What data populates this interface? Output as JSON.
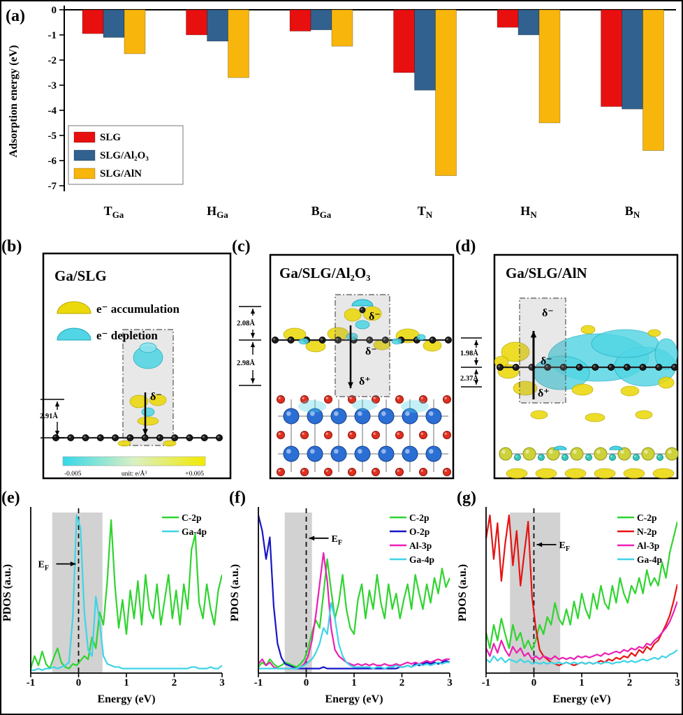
{
  "figure": {
    "panel_labels": {
      "a": "(a)",
      "b": "(b)",
      "c": "(c)",
      "d": "(d)",
      "e": "(e)",
      "f": "(f)",
      "g": "(g)"
    }
  },
  "panel_b": {
    "title": "Ga/SLG",
    "legend": [
      {
        "name": "accumulation-blob",
        "label": "e⁻ accumulation",
        "color": "#ecd90b"
      },
      {
        "name": "depletion-blob",
        "label": "e⁻ depletion",
        "color": "#52d5e4"
      }
    ],
    "distance": "2.91Å",
    "delta_minus": "δ⁻",
    "colorbar": {
      "min": "-0.005",
      "max": "+0.005",
      "unit": "unit: e/Å³"
    }
  },
  "panel_c": {
    "title": "Ga/SLG/Al₂O₃",
    "distance_top": "2.08Å",
    "distance_bottom": "2.98Å",
    "delta_minus": "δ⁻",
    "delta_plus": "δ⁺"
  },
  "panel_d": {
    "title": "Ga/SLG/AlN",
    "distance_top": "1.98Å",
    "distance_bottom": "2.37Å",
    "delta_minus": "δ⁻",
    "delta_plus": "δ⁺"
  },
  "chart_data": [
    {
      "id": "adsorption-energy-bars",
      "type": "bar",
      "title": "",
      "xlabel": "",
      "ylabel": "Adsorption energy (eV)",
      "ylim": [
        -7,
        0
      ],
      "yticks": [
        0,
        -1,
        -2,
        -3,
        -4,
        -5,
        -6,
        -7
      ],
      "categories": [
        {
          "main": "T",
          "sub": "Ga"
        },
        {
          "main": "H",
          "sub": "Ga"
        },
        {
          "main": "B",
          "sub": "Ga"
        },
        {
          "main": "T",
          "sub": "N"
        },
        {
          "main": "H",
          "sub": "N"
        },
        {
          "main": "B",
          "sub": "N"
        }
      ],
      "series": [
        {
          "name": "SLG",
          "color": "#e8100f",
          "values": [
            -0.95,
            -1.0,
            -0.85,
            -2.5,
            -0.7,
            -3.85
          ]
        },
        {
          "name": "SLG/Al₂O₃",
          "color": "#31618f",
          "values": [
            -1.1,
            -1.25,
            -0.8,
            -3.2,
            -1.0,
            -3.95
          ]
        },
        {
          "name": "SLG/AlN",
          "color": "#f8b50c",
          "values": [
            -1.75,
            -2.7,
            -1.45,
            -6.6,
            -4.5,
            -5.6
          ]
        }
      ],
      "legend_position": "middle-left",
      "grid": false
    },
    {
      "id": "pdos-ga-slg",
      "type": "line",
      "xlabel": "Energy (eV)",
      "ylabel": "PDOS (a.u.)",
      "xlim": [
        -1,
        3
      ],
      "xticks": [
        -1,
        0,
        1,
        2,
        3
      ],
      "x_start": -1,
      "x_step": 0.08,
      "shade": [
        -0.55,
        0.5
      ],
      "fermi": {
        "x": 0,
        "main": "E",
        "sub": "F",
        "side": "left",
        "y_frac": 0.32
      },
      "legend_position": "top-right",
      "series": [
        {
          "name": "C-2p",
          "color": "#2fd42f",
          "values": [
            0.02,
            0.1,
            0.04,
            0.13,
            0.05,
            0.02,
            0.09,
            0.15,
            0.06,
            0.03,
            0.02,
            0.05,
            0.04,
            0.07,
            0.1,
            0.08,
            0.22,
            0.15,
            0.38,
            0.3,
            0.58,
            0.97,
            0.55,
            0.28,
            0.46,
            0.24,
            0.52,
            0.34,
            0.58,
            0.3,
            0.62,
            0.4,
            0.34,
            0.56,
            0.3,
            0.46,
            0.62,
            0.34,
            0.52,
            0.3,
            0.56,
            0.4,
            0.78,
            0.88,
            0.44,
            0.34,
            0.56,
            0.4,
            0.3,
            0.52,
            0.62
          ]
        },
        {
          "name": "Ga-4p",
          "color": "#3fd4e6",
          "values": [
            0.01,
            0.01,
            0.02,
            0.01,
            0.02,
            0.02,
            0.03,
            0.02,
            0.03,
            0.04,
            0.06,
            0.35,
            1.0,
            0.92,
            0.38,
            0.14,
            0.1,
            0.48,
            0.32,
            0.1,
            0.05,
            0.04,
            0.03,
            0.03,
            0.02,
            0.02,
            0.02,
            0.02,
            0.02,
            0.02,
            0.02,
            0.02,
            0.02,
            0.02,
            0.02,
            0.02,
            0.02,
            0.02,
            0.02,
            0.02,
            0.02,
            0.02,
            0.03,
            0.03,
            0.02,
            0.02,
            0.02,
            0.03,
            0.02,
            0.02,
            0.04
          ]
        }
      ]
    },
    {
      "id": "pdos-ga-slg-al2o3",
      "type": "line",
      "xlabel": "Energy (eV)",
      "ylabel": "PDOS (a.u.)",
      "xlim": [
        -1,
        3
      ],
      "xticks": [
        -1,
        0,
        1,
        2,
        3
      ],
      "x_start": -1,
      "x_step": 0.08,
      "shade": [
        -0.45,
        0.12
      ],
      "fermi": {
        "x": 0,
        "main": "E",
        "sub": "F",
        "side": "right",
        "y_frac": 0.16
      },
      "legend_position": "top-right",
      "series": [
        {
          "name": "C-2p",
          "color": "#2fd42f",
          "values": [
            0.03,
            0.06,
            0.04,
            0.08,
            0.05,
            0.03,
            0.04,
            0.06,
            0.05,
            0.04,
            0.03,
            0.05,
            0.08,
            0.15,
            0.25,
            0.33,
            0.28,
            0.5,
            0.72,
            0.52,
            0.34,
            0.44,
            0.62,
            0.4,
            0.28,
            0.24,
            0.46,
            0.56,
            0.34,
            0.52,
            0.4,
            0.62,
            0.44,
            0.34,
            0.56,
            0.4,
            0.5,
            0.34,
            0.46,
            0.56,
            0.4,
            0.62,
            0.5,
            0.4,
            0.56,
            0.44,
            0.6,
            0.5,
            0.66,
            0.54,
            0.6
          ]
        },
        {
          "name": "O-2p",
          "color": "#1616c8",
          "values": [
            1.0,
            0.9,
            0.72,
            0.86,
            0.42,
            0.18,
            0.09,
            0.05,
            0.04,
            0.03,
            0.02,
            0.02,
            0.02,
            0.02,
            0.02,
            0.02,
            0.02,
            0.03,
            0.02,
            0.02,
            0.02,
            0.02,
            0.02,
            0.02,
            0.02,
            0.02,
            0.02,
            0.02,
            0.02,
            0.02,
            0.02,
            0.02,
            0.02,
            0.02,
            0.02,
            0.02,
            0.02,
            0.03,
            0.03,
            0.04,
            0.03,
            0.05,
            0.04,
            0.05,
            0.06,
            0.05,
            0.06,
            0.05,
            0.06,
            0.07,
            0.06
          ]
        },
        {
          "name": "Al-3p",
          "color": "#ec1fb4",
          "values": [
            0.05,
            0.08,
            0.04,
            0.06,
            0.03,
            0.02,
            0.02,
            0.02,
            0.02,
            0.02,
            0.02,
            0.03,
            0.05,
            0.1,
            0.2,
            0.36,
            0.56,
            0.76,
            0.58,
            0.28,
            0.14,
            0.1,
            0.08,
            0.06,
            0.05,
            0.04,
            0.05,
            0.04,
            0.05,
            0.04,
            0.05,
            0.04,
            0.04,
            0.05,
            0.04,
            0.04,
            0.05,
            0.04,
            0.05,
            0.06,
            0.05,
            0.06,
            0.05,
            0.06,
            0.07,
            0.06,
            0.07,
            0.08,
            0.07,
            0.08,
            0.08
          ]
        },
        {
          "name": "Ga-4p",
          "color": "#3fd4e6",
          "values": [
            0.02,
            0.02,
            0.02,
            0.02,
            0.02,
            0.02,
            0.02,
            0.02,
            0.02,
            0.02,
            0.02,
            0.03,
            0.04,
            0.06,
            0.08,
            0.12,
            0.18,
            0.28,
            0.24,
            0.44,
            0.34,
            0.18,
            0.1,
            0.06,
            0.04,
            0.03,
            0.03,
            0.03,
            0.03,
            0.03,
            0.02,
            0.03,
            0.03,
            0.02,
            0.03,
            0.03,
            0.04,
            0.03,
            0.03,
            0.04,
            0.03,
            0.04,
            0.05,
            0.04,
            0.05,
            0.04,
            0.05,
            0.06,
            0.05,
            0.06,
            0.06
          ]
        }
      ]
    },
    {
      "id": "pdos-ga-slg-aln",
      "type": "line",
      "xlabel": "Energy (eV)",
      "ylabel": "PDOS (a.u.)",
      "xlim": [
        -1,
        3
      ],
      "xticks": [
        -1,
        0,
        1,
        2,
        3
      ],
      "x_start": -1,
      "x_step": 0.08,
      "shade": [
        -0.5,
        0.55
      ],
      "fermi": {
        "x": 0,
        "main": "E",
        "sub": "F",
        "side": "right",
        "y_frac": 0.2
      },
      "legend_position": "top-right",
      "series": [
        {
          "name": "C-2p",
          "color": "#2fd42f",
          "values": [
            0.25,
            0.15,
            0.3,
            0.2,
            0.34,
            0.24,
            0.15,
            0.3,
            0.2,
            0.25,
            0.15,
            0.2,
            0.14,
            0.2,
            0.3,
            0.24,
            0.35,
            0.3,
            0.44,
            0.34,
            0.3,
            0.4,
            0.3,
            0.45,
            0.34,
            0.5,
            0.4,
            0.34,
            0.5,
            0.4,
            0.55,
            0.44,
            0.4,
            0.55,
            0.44,
            0.6,
            0.5,
            0.44,
            0.55,
            0.5,
            0.6,
            0.5,
            0.65,
            0.55,
            0.6,
            0.55,
            0.7,
            0.6,
            0.76,
            0.86,
            0.96
          ]
        },
        {
          "name": "N-2p",
          "color": "#e61414",
          "values": [
            0.85,
            1.0,
            0.72,
            0.95,
            0.58,
            0.82,
            1.0,
            0.68,
            0.9,
            0.55,
            0.76,
            0.96,
            0.48,
            0.28,
            0.14,
            0.1,
            0.08,
            0.06,
            0.05,
            0.04,
            0.05,
            0.06,
            0.05,
            0.04,
            0.05,
            0.06,
            0.05,
            0.06,
            0.05,
            0.06,
            0.07,
            0.06,
            0.08,
            0.07,
            0.09,
            0.08,
            0.1,
            0.09,
            0.12,
            0.1,
            0.14,
            0.12,
            0.16,
            0.14,
            0.18,
            0.2,
            0.25,
            0.3,
            0.36,
            0.45,
            0.56
          ]
        },
        {
          "name": "Al-3p",
          "color": "#ec1fb4",
          "values": [
            0.15,
            0.1,
            0.18,
            0.12,
            0.2,
            0.14,
            0.1,
            0.16,
            0.12,
            0.15,
            0.1,
            0.12,
            0.08,
            0.1,
            0.08,
            0.1,
            0.09,
            0.08,
            0.1,
            0.08,
            0.09,
            0.08,
            0.09,
            0.08,
            0.1,
            0.09,
            0.1,
            0.09,
            0.1,
            0.11,
            0.1,
            0.12,
            0.11,
            0.12,
            0.13,
            0.12,
            0.14,
            0.13,
            0.15,
            0.14,
            0.16,
            0.15,
            0.18,
            0.17,
            0.2,
            0.22,
            0.25,
            0.28,
            0.32,
            0.38,
            0.45
          ]
        },
        {
          "name": "Ga-4p",
          "color": "#3fd4e6",
          "values": [
            0.08,
            0.06,
            0.1,
            0.07,
            0.09,
            0.06,
            0.08,
            0.07,
            0.06,
            0.08,
            0.06,
            0.07,
            0.05,
            0.06,
            0.05,
            0.06,
            0.05,
            0.06,
            0.05,
            0.06,
            0.05,
            0.06,
            0.05,
            0.06,
            0.05,
            0.06,
            0.05,
            0.06,
            0.05,
            0.06,
            0.05,
            0.06,
            0.06,
            0.05,
            0.06,
            0.06,
            0.07,
            0.06,
            0.07,
            0.06,
            0.07,
            0.08,
            0.07,
            0.08,
            0.09,
            0.08,
            0.1,
            0.09,
            0.11,
            0.12,
            0.14
          ]
        }
      ]
    }
  ]
}
